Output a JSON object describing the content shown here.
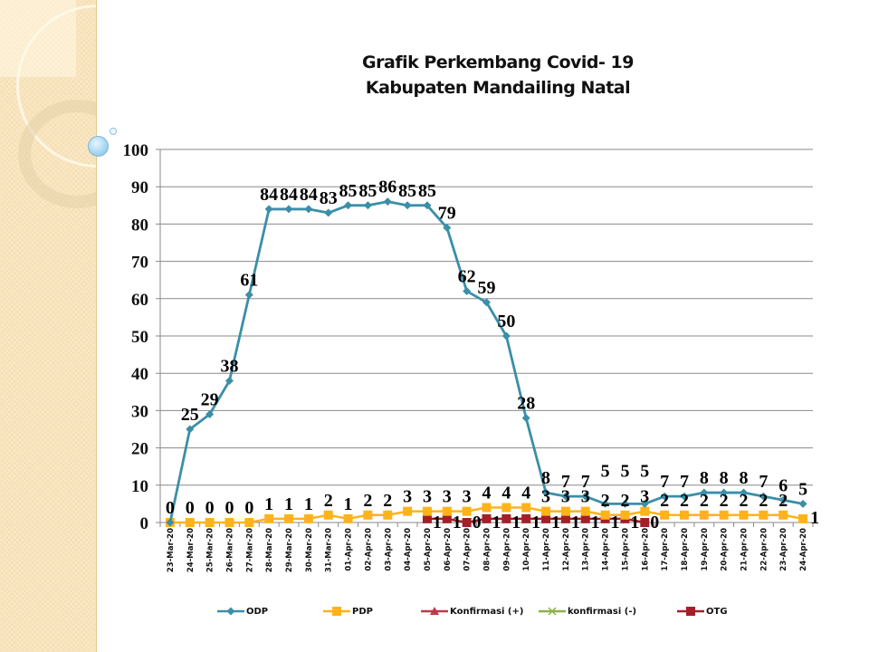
{
  "chart_data": {
    "type": "line",
    "title": "Grafik Perkembang Covid- 19",
    "subtitle": "Kabupaten Mandailing Natal",
    "xlabel": "",
    "ylabel": "",
    "ylim": [
      0,
      100
    ],
    "yticks": [
      0,
      10,
      20,
      30,
      40,
      50,
      60,
      70,
      80,
      90,
      100
    ],
    "grid": true,
    "legend_position": "bottom",
    "categories": [
      "23-Mar-20",
      "24-Mar-20",
      "25-Mar-20",
      "26-Mar-20",
      "27-Mar-20",
      "28-Mar-20",
      "29-Mar-20",
      "30-Mar-20",
      "31-Mar-20",
      "01-Apr-20",
      "02-Apr-20",
      "03-Apr-20",
      "04-Apr-20",
      "05-Apr-20",
      "06-Apr-20",
      "07-Apr-20",
      "08-Apr-20",
      "09-Apr-20",
      "10-Apr-20",
      "11-Apr-20",
      "12-Apr-20",
      "13-Apr-20",
      "14-Apr-20",
      "15-Apr-20",
      "16-Apr-20",
      "17-Apr-20",
      "18-Apr-20",
      "19-Apr-20",
      "20-Apr-20",
      "21-Apr-20",
      "22-Apr-20",
      "23-Apr-20",
      "24-Apr-20"
    ],
    "series": [
      {
        "name": "ODP",
        "color": "#3a8fa8",
        "marker": "diamond",
        "values": [
          0,
          25,
          29,
          38,
          61,
          84,
          84,
          84,
          83,
          85,
          85,
          86,
          85,
          85,
          79,
          62,
          59,
          50,
          28,
          8,
          7,
          7,
          5,
          5,
          5,
          7,
          7,
          8,
          8,
          8,
          7,
          6,
          5
        ]
      },
      {
        "name": "PDP",
        "color": "#ffb31a",
        "marker": "square",
        "values": [
          0,
          0,
          0,
          0,
          0,
          1,
          1,
          1,
          2,
          1,
          2,
          2,
          3,
          3,
          3,
          3,
          4,
          4,
          4,
          3,
          3,
          3,
          2,
          2,
          3,
          2,
          2,
          2,
          2,
          2,
          2,
          2,
          1
        ]
      },
      {
        "name": "Konfirmasi (+)",
        "color": "#c0394b",
        "marker": "triangle",
        "values": [
          null,
          null,
          null,
          null,
          null,
          null,
          null,
          null,
          null,
          null,
          null,
          null,
          null,
          null,
          null,
          null,
          null,
          null,
          null,
          null,
          null,
          null,
          null,
          null,
          null,
          null,
          null,
          null,
          null,
          null,
          null,
          null,
          null
        ]
      },
      {
        "name": "konfirmasi (-)",
        "color": "#8db04a",
        "marker": "x",
        "values": [
          null,
          null,
          null,
          null,
          null,
          null,
          null,
          null,
          null,
          null,
          null,
          null,
          null,
          null,
          null,
          null,
          null,
          null,
          null,
          null,
          null,
          null,
          null,
          null,
          null,
          null,
          null,
          null,
          null,
          null,
          null,
          null,
          null
        ]
      },
      {
        "name": "OTG",
        "color": "#a31f2a",
        "marker": "square",
        "values": [
          null,
          null,
          null,
          null,
          null,
          null,
          null,
          null,
          null,
          null,
          null,
          null,
          null,
          1,
          1,
          0,
          1,
          1,
          1,
          1,
          1,
          1,
          1,
          1,
          0,
          null,
          null,
          null,
          null,
          null,
          null,
          null,
          null
        ]
      }
    ]
  }
}
